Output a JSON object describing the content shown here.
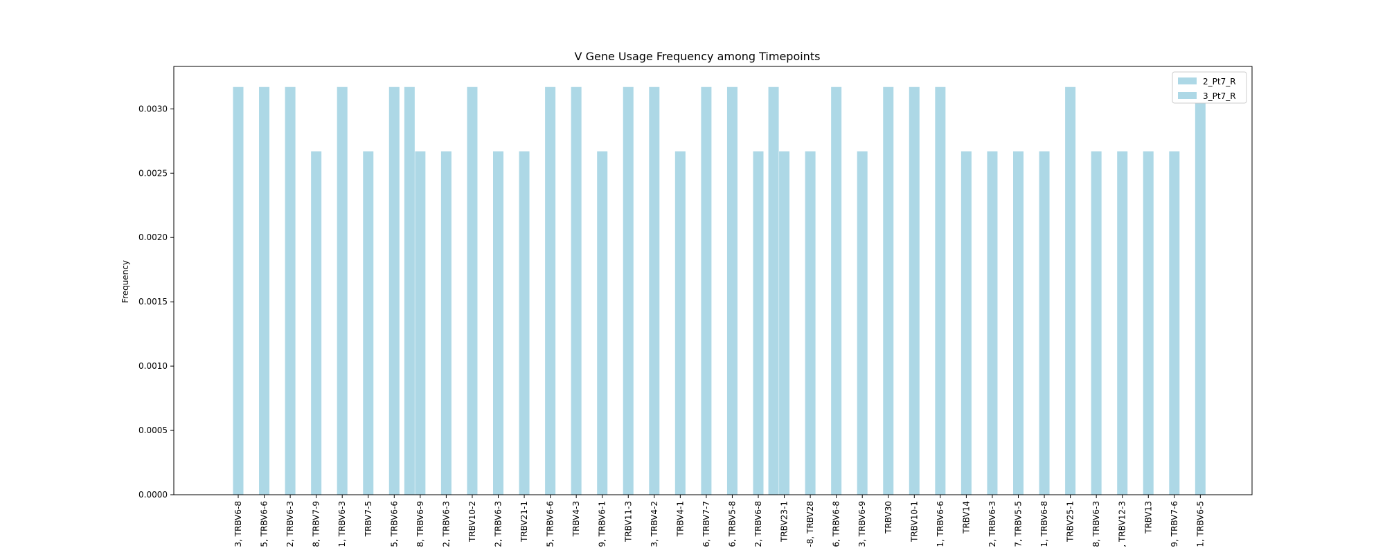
{
  "chart_data": {
    "type": "bar",
    "title": "V Gene Usage Frequency among Timepoints",
    "xlabel": "",
    "ylabel": "Frequency",
    "ylim": [
      0,
      0.00333
    ],
    "yticks": [
      "0.0000",
      "0.0005",
      "0.0010",
      "0.0015",
      "0.0020",
      "0.0025",
      "0.0030"
    ],
    "ytick_values": [
      0,
      0.0005,
      0.001,
      0.0015,
      0.002,
      0.0025,
      0.003
    ],
    "grid": false,
    "legend_position": "top-right",
    "bar_color": "#add8e6",
    "categories": [
      "3, TRBV6-8",
      "5, TRBV6-6",
      "2, TRBV6-3",
      "8, TRBV7-9",
      "1, TRBV6-3",
      "TRBV7-5",
      "5, TRBV6-6",
      "8, TRBV6-9",
      "2, TRBV6-3",
      "TRBV10-2",
      "2, TRBV6-3",
      "TRBV21-1",
      "5, TRBV6-6",
      "TRBV4-3",
      "9, TRBV6-1",
      "TRBV11-3",
      "3, TRBV4-2",
      "TRBV4-1",
      "6, TRBV7-7",
      "6, TRBV5-8",
      "2, TRBV6-8",
      "TRBV23-1",
      "-8, TRBV28",
      "6, TRBV6-8",
      "3, TRBV6-9",
      "TRBV30",
      "TRBV10-1",
      "1, TRBV6-6",
      "TRBV14",
      "2, TRBV6-3",
      "7, TRBV5-5",
      "1, TRBV6-8",
      "TRBV25-1",
      "8, TRBV6-3",
      ", TRBV12-3",
      "TRBV13",
      "9, TRBV7-6",
      "1, TRBV6-5"
    ],
    "series": [
      {
        "name": "2_Pt7_R",
        "color": "#add8e6",
        "values": [
          0.00317,
          0.00317,
          0.00317,
          0.00267,
          0.00317,
          0.00267,
          0.00317,
          0.00267,
          0.00267,
          0.00317,
          0.00267,
          0.00267,
          0.00317,
          0.00317,
          0.00267,
          0.00317,
          0.00317,
          0.00267,
          0.00317,
          0.00317,
          0.00267,
          0.00267,
          0.00267,
          0.00317,
          0.00267,
          0.00317,
          0.00317,
          0.00317,
          0.00267,
          0.00267,
          0.00267,
          0.00267,
          0.00317,
          0.00267,
          0.00267,
          0.00267,
          0.00267,
          0.00317
        ]
      },
      {
        "name": "3_Pt7_R",
        "color": "#add8e6",
        "values": [
          0,
          0,
          0,
          0,
          0,
          0,
          0,
          0.00317,
          0,
          0,
          0,
          0,
          0,
          0,
          0,
          0,
          0,
          0,
          0,
          0,
          0,
          0.00317,
          0,
          0,
          0,
          0,
          0,
          0,
          0,
          0,
          0,
          0,
          0,
          0,
          0,
          0,
          0,
          0
        ]
      }
    ]
  }
}
